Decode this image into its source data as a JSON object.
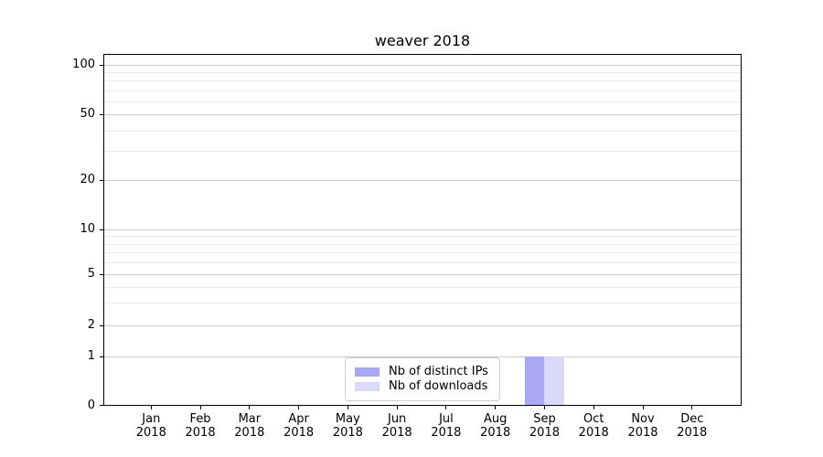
{
  "title": "weaver 2018",
  "chart_data": {
    "type": "bar",
    "title": "weaver 2018",
    "categories": [
      "Jan 2018",
      "Feb 2018",
      "Mar 2018",
      "Apr 2018",
      "May 2018",
      "Jun 2018",
      "Jul 2018",
      "Aug 2018",
      "Sep 2018",
      "Oct 2018",
      "Nov 2018",
      "Dec 2018"
    ],
    "series": [
      {
        "name": "Nb of distinct IPs",
        "color": "#a8a8f5",
        "values": [
          0,
          0,
          0,
          0,
          0,
          0,
          0,
          0,
          1,
          0,
          0,
          0
        ]
      },
      {
        "name": "Nb of downloads",
        "color": "#dadaf8",
        "values": [
          0,
          0,
          0,
          0,
          0,
          0,
          0,
          0,
          1,
          0,
          0,
          0
        ]
      }
    ],
    "xlabel": "",
    "ylabel": "",
    "yscale": "symlog",
    "y_ticks": [
      0,
      1,
      2,
      5,
      10,
      20,
      50,
      100
    ],
    "y_minor_ticks": [
      3,
      4,
      6,
      7,
      8,
      9,
      30,
      40,
      60,
      70,
      80,
      90
    ],
    "ylim": [
      0,
      110
    ],
    "grid": "horizontal",
    "legend_position": "lower center"
  },
  "colors": {
    "grid_major": "#cccccc",
    "grid_minor": "#ebebeb",
    "axis": "#000000",
    "text": "#000000",
    "background": "#ffffff"
  }
}
